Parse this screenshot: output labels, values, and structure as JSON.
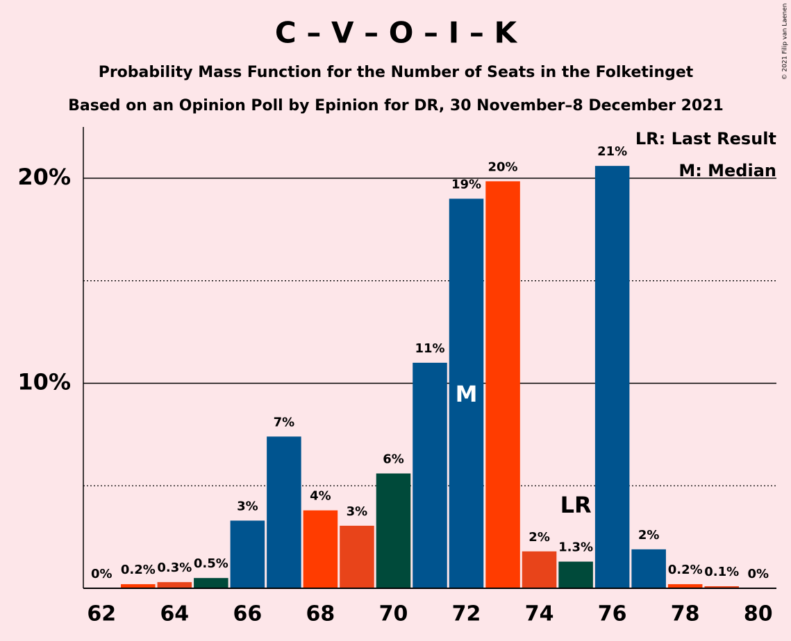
{
  "chart_data": {
    "type": "bar",
    "title": "C – V – O – I – K",
    "subtitle": "Probability Mass Function for the Number of Seats in the Folketinget",
    "subtitle2": "Based on an Opinion Poll by Epinion for DR, 30 November–8 December 2021",
    "copyright": "© 2021 Filip van Laenen",
    "x": [
      62,
      63,
      64,
      65,
      66,
      67,
      68,
      69,
      70,
      71,
      72,
      73,
      74,
      75,
      76,
      77,
      78,
      79,
      80
    ],
    "values": [
      0,
      0.2,
      0.3,
      0.5,
      3.3,
      7.4,
      3.8,
      3.05,
      5.6,
      11.0,
      19.0,
      19.85,
      1.8,
      1.3,
      20.6,
      1.9,
      0.2,
      0.1,
      0
    ],
    "value_labels": [
      "0%",
      "0.2%",
      "0.3%",
      "0.5%",
      "3%",
      "7%",
      "4%",
      "3%",
      "6%",
      "11%",
      "19%",
      "20%",
      "2%",
      "1.3%",
      "21%",
      "2%",
      "0.2%",
      "0.1%",
      "0%"
    ],
    "colors": [
      "#00548f",
      "#ff3c00",
      "#e8441a",
      "#004a3a",
      "#00548f",
      "#00548f",
      "#ff3c00",
      "#e8441a",
      "#004a3a",
      "#00548f",
      "#00548f",
      "#ff3c00",
      "#e8441a",
      "#004a3a",
      "#00548f",
      "#00548f",
      "#ff3c00",
      "#e8441a",
      "#004a3a"
    ],
    "xlim": [
      61.5,
      80.5
    ],
    "xticks": [
      62,
      64,
      66,
      68,
      70,
      72,
      74,
      76,
      78,
      80
    ],
    "ylim": [
      0,
      22.5
    ],
    "yticks": [
      {
        "value": 10,
        "label": "10%"
      },
      {
        "value": 20,
        "label": "20%"
      }
    ],
    "minor_yticks": [
      5,
      15
    ],
    "annotations": [
      {
        "text": "M",
        "x": 72,
        "color": "#ffffff"
      },
      {
        "text": "LR",
        "x": 75,
        "color": "#000000"
      }
    ],
    "legend": [
      "LR: Last Result",
      "M: Median"
    ]
  }
}
